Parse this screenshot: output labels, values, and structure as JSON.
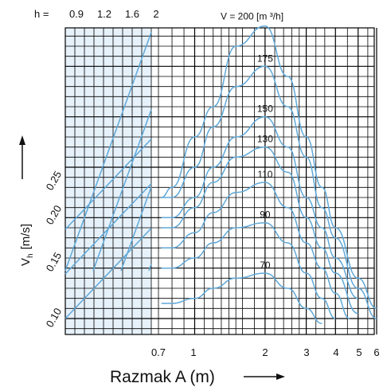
{
  "chart_data": {
    "type": "line",
    "x_axis": {
      "label": "Razmak A (m)",
      "scale": "log",
      "tick_labels": [
        "0.7",
        "1",
        "2",
        "3",
        "4",
        "5",
        "6"
      ]
    },
    "y_axis": {
      "label_main": "V",
      "label_sub": "h",
      "label_unit": "[m/s]",
      "tick_labels": [
        "0.10",
        "0.15",
        "0.20",
        "0.25"
      ]
    },
    "h_scale": {
      "prefix": "h =",
      "values": [
        "0.9",
        "1.2",
        "1.6",
        "2"
      ]
    },
    "flow_curves": [
      {
        "label": "V = 200 [m ³/h]",
        "x": [
          0.72,
          0.8,
          1.0,
          1.2,
          1.5,
          2.0,
          2.5,
          3.0,
          3.5,
          4.0,
          5.0,
          6.0
        ],
        "y": [
          0.22,
          0.23,
          0.28,
          0.31,
          0.37,
          0.39,
          0.34,
          0.28,
          0.23,
          0.19,
          0.14,
          0.11
        ]
      },
      {
        "label": "175",
        "x": [
          0.72,
          0.8,
          1.0,
          1.2,
          1.5,
          2.0,
          2.5,
          3.0,
          3.5,
          4.0,
          5.0,
          6.0
        ],
        "y": [
          0.22,
          0.22,
          0.25,
          0.29,
          0.33,
          0.35,
          0.31,
          0.26,
          0.21,
          0.18,
          0.13,
          0.1
        ]
      },
      {
        "label": "150",
        "x": [
          0.72,
          0.8,
          1.0,
          1.2,
          1.5,
          2.0,
          2.5,
          3.0,
          3.5,
          4.0,
          5.0
        ],
        "y": [
          0.2,
          0.2,
          0.22,
          0.25,
          0.28,
          0.3,
          0.27,
          0.22,
          0.19,
          0.16,
          0.12
        ]
      },
      {
        "label": "130",
        "x": [
          0.72,
          0.8,
          1.0,
          1.2,
          1.5,
          2.0,
          2.5,
          3.0,
          3.5,
          4.0,
          5.0
        ],
        "y": [
          0.19,
          0.19,
          0.21,
          0.235,
          0.26,
          0.27,
          0.245,
          0.2,
          0.17,
          0.145,
          0.105
        ]
      },
      {
        "label": "110",
        "x": [
          0.72,
          0.8,
          1.0,
          1.2,
          1.5,
          2.0,
          2.5,
          3.0,
          3.5,
          4.0,
          4.6
        ],
        "y": [
          0.17,
          0.17,
          0.185,
          0.205,
          0.225,
          0.235,
          0.21,
          0.175,
          0.15,
          0.125,
          0.1
        ]
      },
      {
        "label": "90",
        "x": [
          0.72,
          0.8,
          1.0,
          1.2,
          1.5,
          2.0,
          2.5,
          3.0,
          3.5,
          4.0
        ],
        "y": [
          0.15,
          0.15,
          0.16,
          0.175,
          0.19,
          0.195,
          0.175,
          0.145,
          0.12,
          0.1
        ]
      },
      {
        "label": "70",
        "x": [
          0.72,
          0.8,
          1.0,
          1.2,
          1.5,
          2.0,
          2.5,
          3.0,
          3.5
        ],
        "y": [
          0.115,
          0.115,
          0.12,
          0.13,
          0.14,
          0.145,
          0.13,
          0.11,
          0.095
        ]
      }
    ],
    "grid": true,
    "colors": {
      "grid": "#000000",
      "curve": "#5fa8d8",
      "band": "#e6f1fa"
    }
  }
}
